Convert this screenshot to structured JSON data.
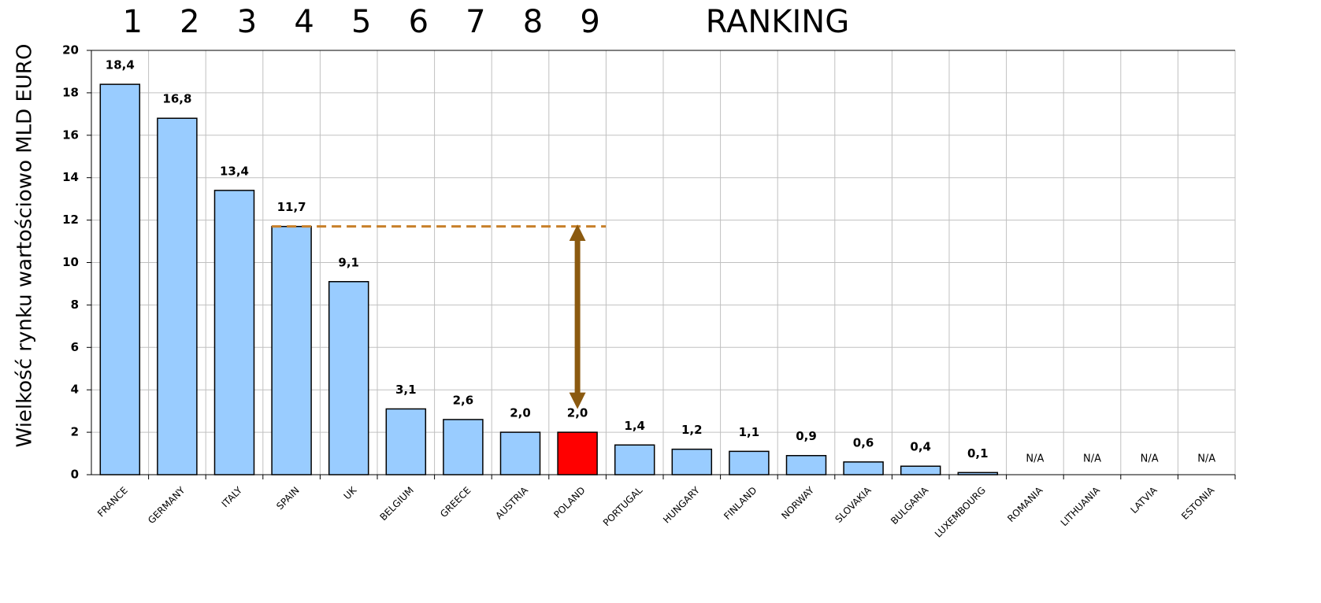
{
  "chart_data": {
    "type": "bar",
    "y_label": "Wielkość rynku wartościowo MLD EURO",
    "ranking": {
      "title": "RANKING",
      "labels": [
        1,
        2,
        3,
        4,
        5,
        6,
        7,
        8,
        9
      ],
      "colors": [
        "#5ba02c",
        "#5ba02c",
        "#5ba02c",
        "#5ba02c",
        "#5ba02c",
        "#5ba02c",
        "#5ba02c",
        "#5ba02c",
        "#ff0000"
      ]
    },
    "categories": [
      "FRANCE",
      "GERMANY",
      "ITALY",
      "SPAIN",
      "UK",
      "BELGIUM",
      "GREECE",
      "AUSTRIA",
      "POLAND",
      "PORTUGAL",
      "HUNGARY",
      "FINLAND",
      "NORWAY",
      "SLOVAKIA",
      "BULGARIA",
      "LUXEMBOURG",
      "ROMANIA",
      "LITHUANIA",
      "LATVIA",
      "ESTONIA"
    ],
    "values": [
      18.4,
      16.8,
      13.4,
      11.7,
      9.1,
      3.1,
      2.6,
      2.0,
      2.0,
      1.4,
      1.2,
      1.1,
      0.9,
      0.6,
      0.4,
      0.1,
      null,
      null,
      null,
      null
    ],
    "value_labels": [
      "18,4",
      "16,8",
      "13,4",
      "11,7",
      "9,1",
      "3,1",
      "2,6",
      "2,0",
      "2,0",
      "1,4",
      "1,2",
      "1,1",
      "0,9",
      "0,6",
      "0,4",
      "0,1",
      "N/A",
      "N/A",
      "N/A",
      "N/A"
    ],
    "colors": [
      "#99ccff",
      "#99ccff",
      "#99ccff",
      "#99ccff",
      "#99ccff",
      "#99ccff",
      "#99ccff",
      "#99ccff",
      "#ff0000",
      "#99ccff",
      "#99ccff",
      "#99ccff",
      "#99ccff",
      "#99ccff",
      "#99ccff",
      "#99ccff",
      "#99ccff",
      "#99ccff",
      "#99ccff",
      "#99ccff"
    ],
    "ylim": [
      0,
      20
    ],
    "yticks": [
      0,
      2,
      4,
      6,
      8,
      10,
      12,
      14,
      16,
      18,
      20
    ],
    "grid": true
  }
}
